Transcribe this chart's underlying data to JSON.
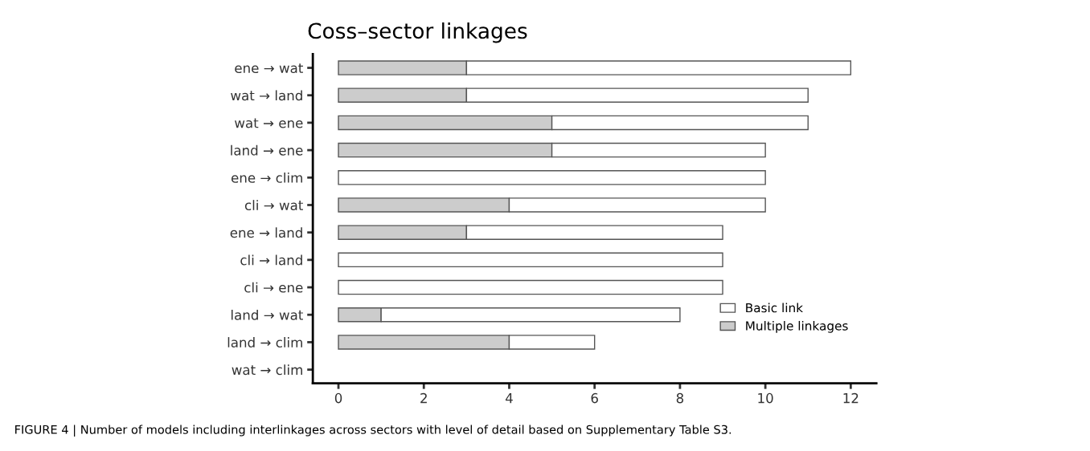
{
  "chart_data": {
    "type": "bar",
    "orientation": "horizontal",
    "stacked": true,
    "title": "Coss–sector linkages",
    "categories": [
      "ene → wat",
      "wat → land",
      "wat → ene",
      "land → ene",
      "ene → clim",
      "cli → wat",
      "ene → land",
      "cli → land",
      "cli → ene",
      "land → wat",
      "land → clim",
      "wat → clim"
    ],
    "series": [
      {
        "name": "Multiple linkages",
        "color": "#cccccc",
        "values": [
          3,
          3,
          5,
          5,
          0,
          4,
          3,
          0,
          0,
          1,
          4,
          0
        ]
      },
      {
        "name": "Basic link",
        "color": "#ffffff",
        "values": [
          9,
          8,
          6,
          5,
          10,
          6,
          6,
          9,
          9,
          7,
          2,
          0
        ]
      }
    ],
    "xlim": [
      -0.6,
      12.6
    ],
    "xticks": [
      0,
      2,
      4,
      6,
      8,
      10,
      12
    ],
    "grid": false,
    "legend": "bottom right",
    "annotations": [
      "FIGURE 4 | Number of models including interlinkages across sectors with level of detail based on Supplementary Table S3."
    ]
  }
}
